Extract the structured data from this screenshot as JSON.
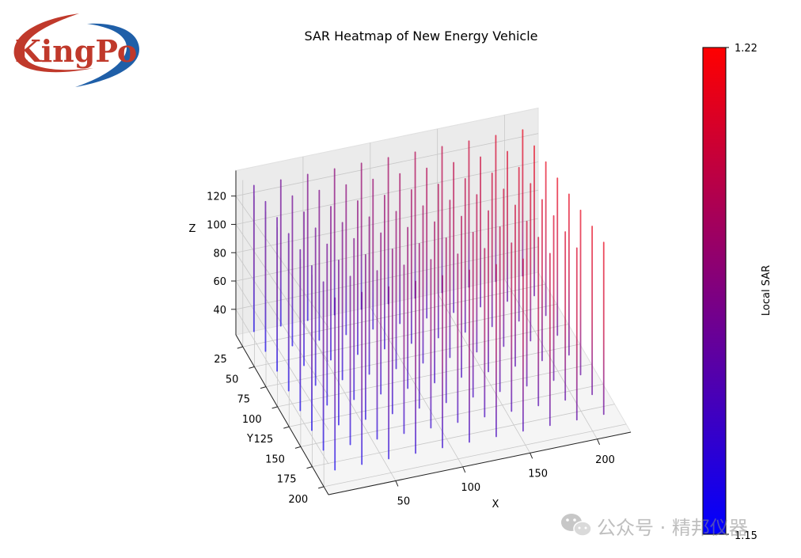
{
  "logo": {
    "brand": "KingPo"
  },
  "watermark": {
    "text": "公众号 · 精邦仪器",
    "icon": "wechat-icon"
  },
  "chart_data": {
    "type": "3d-vertical-line-heatmap",
    "title": "SAR Heatmap of New Energy Vehicle",
    "xlabel": "X",
    "ylabel": "Y",
    "zlabel": "Z",
    "x_ticks": [
      50,
      100,
      150,
      200
    ],
    "y_ticks": [
      25,
      50,
      75,
      100,
      125,
      150,
      175,
      200
    ],
    "z_ticks": [
      40,
      60,
      80,
      100,
      120
    ],
    "x_range": [
      0,
      225
    ],
    "y_range": [
      10,
      210
    ],
    "z_range": [
      22,
      138
    ],
    "grid": true,
    "colorbar": {
      "label": "Local SAR",
      "min": 1.15,
      "max": 1.22,
      "min_label": "1.15",
      "max_label": "1.22",
      "color_low": "#0000ff",
      "color_high": "#ff0000"
    },
    "lines": {
      "x_positions": [
        10,
        30,
        50,
        70,
        90,
        110,
        130,
        150,
        170,
        190,
        210
      ],
      "y_positions": [
        20,
        45,
        70,
        95,
        120,
        145,
        170,
        195
      ],
      "z_from": 28,
      "z_to": 130
    }
  }
}
